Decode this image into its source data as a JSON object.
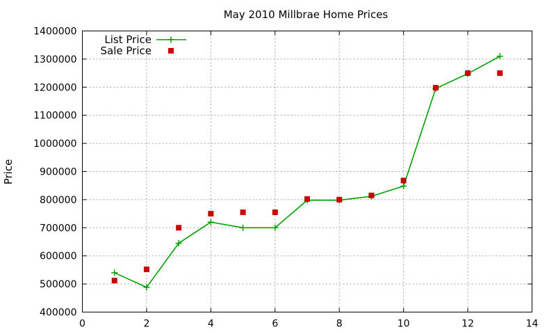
{
  "chart_data": {
    "type": "line",
    "title": "May 2010 Millbrae Home Prices",
    "xlabel": "",
    "ylabel": "Price",
    "xlim": [
      0,
      14
    ],
    "ylim": [
      400000,
      1400000
    ],
    "xticks": [
      0,
      2,
      4,
      6,
      8,
      10,
      12,
      14
    ],
    "yticks": [
      400000,
      500000,
      600000,
      700000,
      800000,
      900000,
      1000000,
      1100000,
      1200000,
      1300000,
      1400000
    ],
    "grid": true,
    "legend_position": "top-left",
    "series": [
      {
        "name": "List Price",
        "style": "line-with-plus-markers",
        "color": "#00a000",
        "x": [
          1,
          2,
          3,
          4,
          5,
          6,
          7,
          8,
          9,
          10,
          11,
          12,
          13
        ],
        "values": [
          540000,
          488000,
          645000,
          720000,
          700000,
          700000,
          798000,
          798000,
          812000,
          848000,
          1195000,
          1248000,
          1310000
        ]
      },
      {
        "name": "Sale Price",
        "style": "square-markers",
        "color": "#cc0000",
        "x": [
          1,
          2,
          3,
          4,
          5,
          6,
          7,
          8,
          9,
          10,
          11,
          12,
          13
        ],
        "values": [
          512000,
          552000,
          700000,
          750000,
          755000,
          755000,
          802000,
          800000,
          815000,
          868000,
          1198000,
          1250000,
          1250000
        ]
      }
    ]
  }
}
